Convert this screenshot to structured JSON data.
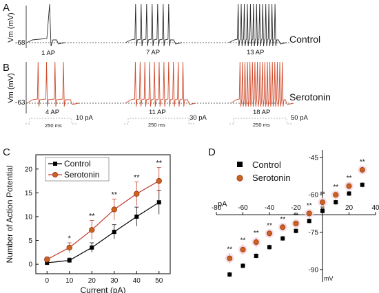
{
  "panels": {
    "A": "A",
    "B": "B",
    "C": "C",
    "D": "D"
  },
  "traces": {
    "vm_label": "Vm (mV)",
    "control": {
      "label": "Control",
      "rest": "-68",
      "color": "#2b2b2b",
      "counts": [
        "1 AP",
        "7 AP",
        "13 AP"
      ],
      "spikes": [
        1,
        7,
        13
      ]
    },
    "serotonin": {
      "label": "Serotonin",
      "rest": "-63",
      "color": "#d04a2c",
      "counts": [
        "4 AP",
        "11 AP",
        "18 AP"
      ],
      "spikes": [
        4,
        11,
        18
      ]
    },
    "step_currents": [
      "10 pA",
      "30 pA",
      "50 pA"
    ],
    "durations": [
      "250 ms",
      "250 ms",
      "250 ms"
    ]
  },
  "chart_data": [
    {
      "type": "line",
      "panel": "C",
      "xlabel": "Current (pA)",
      "ylabel": "Number of Action Potential",
      "x": [
        0,
        10,
        20,
        30,
        40,
        50
      ],
      "xlim": [
        -5,
        55
      ],
      "ylim": [
        -2,
        23
      ],
      "xticks": [
        0,
        10,
        20,
        30,
        40,
        50
      ],
      "yticks": [
        0,
        5,
        10,
        15,
        20
      ],
      "legend": "top-left",
      "grid": false,
      "series": [
        {
          "name": "Control",
          "color": "#000000",
          "marker": "square",
          "values": [
            0.3,
            0.8,
            3.5,
            6.8,
            10.0,
            13.0
          ],
          "error": [
            0.3,
            0.5,
            1.0,
            1.5,
            2.0,
            2.5
          ]
        },
        {
          "name": "Serotonin",
          "color": "#c0392b",
          "marker": "circle",
          "values": [
            1.0,
            3.5,
            7.2,
            11.5,
            14.8,
            17.5
          ],
          "error": [
            0.5,
            1.0,
            2.0,
            2.2,
            2.5,
            2.8
          ]
        }
      ],
      "significance": [
        {
          "x": 10,
          "label": "*"
        },
        {
          "x": 20,
          "label": "**"
        },
        {
          "x": 30,
          "label": "**"
        },
        {
          "x": 40,
          "label": "**"
        },
        {
          "x": 50,
          "label": "**"
        }
      ]
    },
    {
      "type": "scatter",
      "panel": "D",
      "xlabel": "pA",
      "ylabel": "mV",
      "xlim": [
        -80,
        40
      ],
      "ylim": [
        -95,
        -42
      ],
      "xticks": [
        -80,
        -60,
        -40,
        -20,
        0,
        20,
        40
      ],
      "yticks": [
        -45,
        -60,
        -75,
        -90
      ],
      "legend": "top-left",
      "grid": false,
      "series": [
        {
          "name": "Control",
          "color": "#000000",
          "marker": "square",
          "x": [
            -70,
            -60,
            -50,
            -40,
            -30,
            -20,
            -10,
            0,
            10,
            20,
            30
          ],
          "y": [
            -92,
            -88.5,
            -84.5,
            -81,
            -77.5,
            -74.5,
            -70.5,
            -66.5,
            -63,
            -59.5,
            -56
          ],
          "error": [
            1,
            1,
            1,
            1,
            1,
            1,
            1,
            1,
            1,
            1,
            1
          ]
        },
        {
          "name": "Serotonin",
          "color": "#c0392b",
          "marker": "circle",
          "x": [
            -70,
            -60,
            -50,
            -40,
            -30,
            -20,
            -10,
            0,
            10,
            20,
            30
          ],
          "y": [
            -85.5,
            -82,
            -79,
            -75.5,
            -73,
            -71.5,
            -67.5,
            -63,
            -60,
            -56.5,
            -50
          ],
          "error": [
            2,
            2,
            2,
            1.5,
            1.5,
            1.5,
            1.5,
            1.5,
            1.5,
            1.5,
            1.5
          ]
        }
      ],
      "significance": [
        {
          "x": -70,
          "label": "**"
        },
        {
          "x": -60,
          "label": "**"
        },
        {
          "x": -50,
          "label": "**"
        },
        {
          "x": -40,
          "label": "**"
        },
        {
          "x": -30,
          "label": "**"
        },
        {
          "x": -20,
          "label": "**"
        },
        {
          "x": -10,
          "label": "**"
        },
        {
          "x": 0,
          "label": "**"
        },
        {
          "x": 10,
          "label": "**"
        },
        {
          "x": 20,
          "label": "**"
        },
        {
          "x": 30,
          "label": "**"
        }
      ]
    }
  ]
}
